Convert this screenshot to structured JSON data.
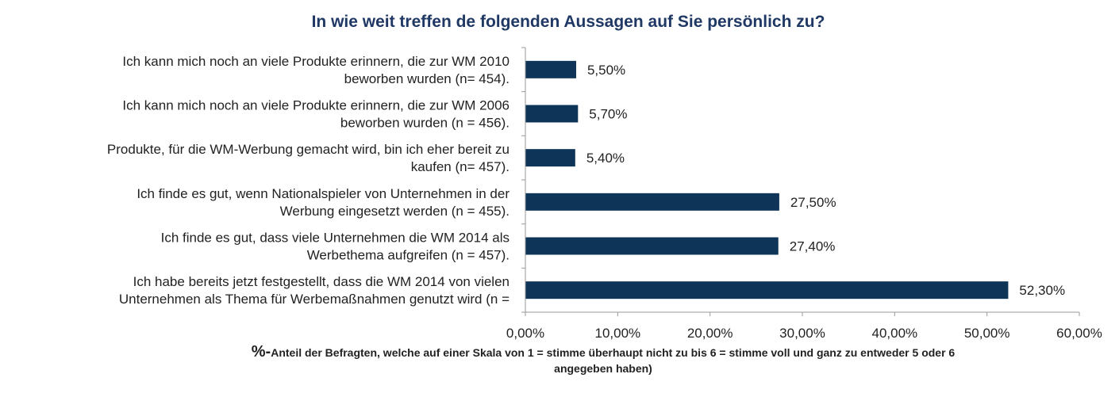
{
  "chart_data": {
    "type": "bar",
    "orientation": "horizontal",
    "title": "In wie weit treffen de folgenden Aussagen auf Sie persönlich zu?",
    "xlabel_prefix": "%-",
    "xlabel": "Anteil der Befragten, welche auf einer Skala von 1 = stimme überhaupt nicht zu bis 6 = stimme voll und ganz zu entweder 5 oder 6 angegeben haben)",
    "categories": [
      [
        "Ich kann mich noch an viele Produkte erinnern, die zur WM 2010",
        "beworben wurden (n= 454)."
      ],
      [
        "Ich kann mich noch an viele Produkte erinnern, die zur WM 2006",
        "beworben wurden (n = 456)."
      ],
      [
        "Produkte, für die WM-Werbung gemacht wird, bin ich eher bereit zu",
        "kaufen (n= 457)."
      ],
      [
        "Ich finde es gut, wenn Nationalspieler von Unternehmen in der",
        "Werbung eingesetzt werden (n = 455)."
      ],
      [
        "Ich finde es gut, dass viele Unternehmen die WM 2014 als",
        "Werbethema aufgreifen (n = 457)."
      ],
      [
        "Ich habe bereits jetzt festgestellt, dass die WM 2014 von vielen",
        "Unternehmen als Thema für Werbemaßnahmen genutzt wird (n ="
      ]
    ],
    "values": [
      5.5,
      5.7,
      5.4,
      27.5,
      27.4,
      52.3
    ],
    "value_labels": [
      "5,50%",
      "5,70%",
      "5,40%",
      "27,50%",
      "27,40%",
      "52,30%"
    ],
    "xlim": [
      0,
      60
    ],
    "xticks": [
      "0,00%",
      "10,00%",
      "20,00%",
      "30,00%",
      "40,00%",
      "50,00%",
      "60,00%"
    ],
    "bar_color": "#0e3458",
    "grid": false,
    "legend": "none"
  }
}
